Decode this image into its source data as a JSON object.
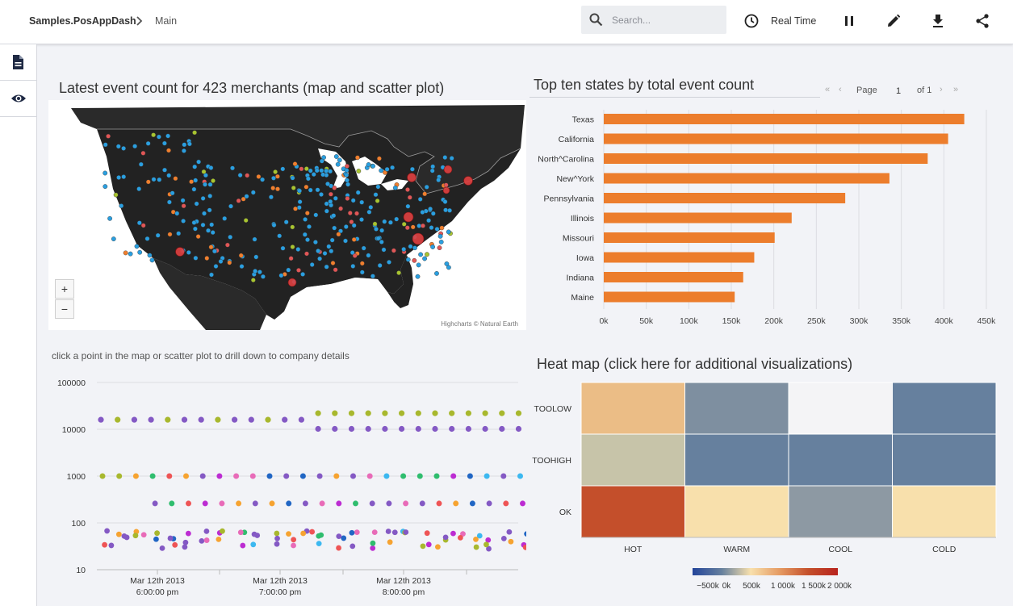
{
  "header": {
    "breadcrumb_app": "Samples.PosAppDash",
    "breadcrumb_page": "Main",
    "search_placeholder": "Search...",
    "realtime_label": "Real Time"
  },
  "icons": {
    "chevron": "chevron-right-icon",
    "search": "search-icon",
    "clock": "clock-icon",
    "pause": "pause-icon",
    "edit": "pencil-icon",
    "download": "download-icon",
    "share": "share-icon",
    "rail_doc": "document-icon",
    "rail_eye": "eye-icon"
  },
  "map_panel": {
    "title": "Latest event count for 423 merchants (map and scatter plot)",
    "zoom_in": "+",
    "zoom_out": "−",
    "credit": "Highcharts © Natural Earth"
  },
  "hint_text": "click a point in the map or scatter plot to drill down to company details",
  "bar_panel": {
    "title": "Top ten states by total event count",
    "page_label": "Page",
    "page_value": "1",
    "page_of": "of 1"
  },
  "heat_panel": {
    "title": "Heat map (click here for additional visualizations)"
  },
  "chart_data": [
    {
      "type": "bar",
      "orientation": "horizontal",
      "categories": [
        "Texas",
        "California",
        "North^Carolina",
        "New^York",
        "Pennsylvania",
        "Illinois",
        "Missouri",
        "Iowa",
        "Indiana",
        "Maine"
      ],
      "values": [
        424000,
        405000,
        381000,
        336000,
        284000,
        221000,
        201000,
        177000,
        164000,
        154000
      ],
      "xlim": [
        0,
        450000
      ],
      "xticks": [
        "0k",
        "50k",
        "100k",
        "150k",
        "200k",
        "250k",
        "300k",
        "350k",
        "400k",
        "450k"
      ],
      "color": "#ec7d2c",
      "grid": true
    },
    {
      "type": "scatter",
      "yscale": "log",
      "ylim": [
        10,
        100000
      ],
      "yticks": [
        "100000",
        "10000",
        "1000",
        "100",
        "10"
      ],
      "xticks": [
        {
          "date": "Mar 12th 2013",
          "time": "6:00:00 pm"
        },
        {
          "date": "Mar 12th 2013",
          "time": "7:00:00 pm"
        },
        {
          "date": "Mar 12th 2013",
          "time": "8:00:00 pm"
        }
      ],
      "bands": [
        16000,
        1000,
        250,
        45
      ],
      "colors": [
        "#8459c4",
        "#a8b82e",
        "#ee5455",
        "#2166c4",
        "#2fbd6e",
        "#e86bb8",
        "#f6a331",
        "#8459c4",
        "#3cb8f0",
        "#bc2cd2"
      ]
    },
    {
      "type": "heatmap",
      "rows": [
        "TOOLOW",
        "TOOHIGH",
        "OK"
      ],
      "cols": [
        "HOT",
        "WARM",
        "COOL",
        "COLD"
      ],
      "cell_colors": [
        [
          "#ebbd86",
          "#7e8fa0",
          "#f4f4f6",
          "#66809e"
        ],
        [
          "#c7c4a9",
          "#66809e",
          "#66809e",
          "#66809e"
        ],
        [
          "#c44f2b",
          "#f8e0ac",
          "#8d99a3",
          "#f8e0ac"
        ]
      ],
      "legend_labels": [
        "−500k",
        "0k",
        "500k",
        "1 000k",
        "1 500k",
        "2 000k"
      ],
      "legend_colors": [
        "#23449a",
        "#66809e",
        "#f8e0ac",
        "#e59a62",
        "#c44f2b",
        "#b8231e"
      ]
    }
  ]
}
